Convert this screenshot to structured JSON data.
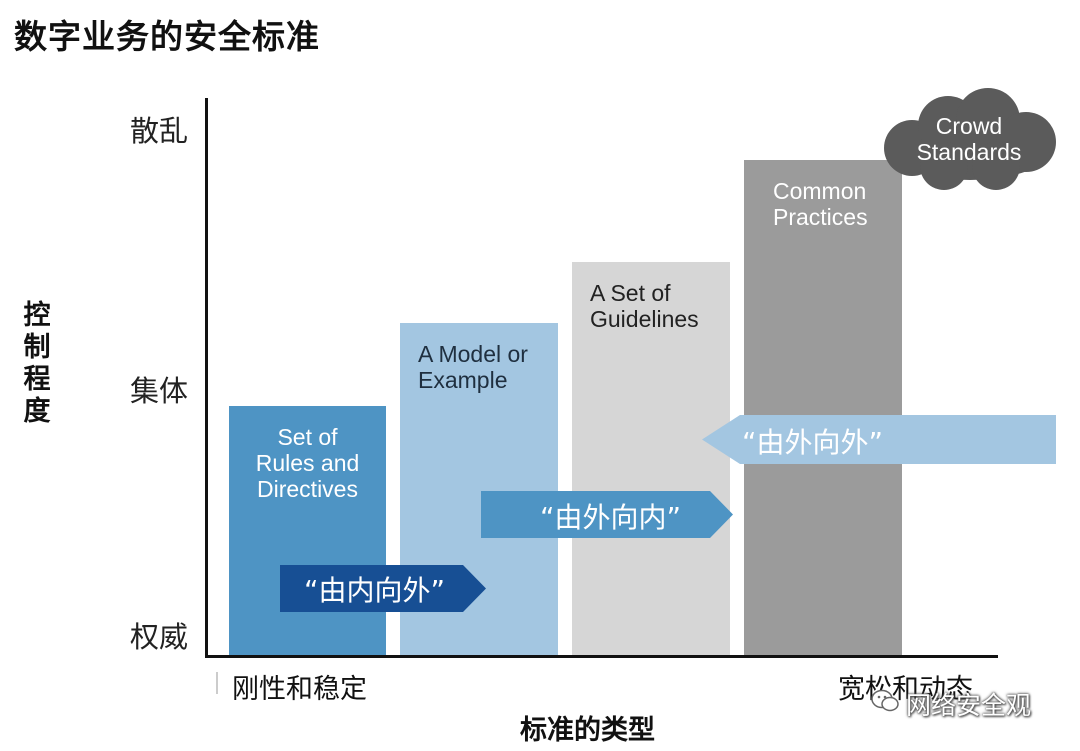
{
  "title": "数字业务的安全标准",
  "y_axis": {
    "title": "控制程度",
    "levels": {
      "top": "散乱",
      "middle": "集体",
      "bottom": "权威"
    }
  },
  "x_axis": {
    "title": "标准的类型",
    "left_label": "刚性和稳定",
    "right_label": "宽松和动态"
  },
  "bars": [
    {
      "label": "Set of\nRules and\nDirectives",
      "color": "#4e94c4",
      "text_color": "#ffffff"
    },
    {
      "label": "A Model or\nExample",
      "color": "#a3c6e1",
      "text_color": "#1f2f3f"
    },
    {
      "label": "A Set of\nGuidelines",
      "color": "#d6d6d6",
      "text_color": "#222222"
    },
    {
      "label": "Common\nPractices",
      "color": "#9b9b9b",
      "text_color": "#ffffff"
    }
  ],
  "cloud": {
    "label": "Crowd\nStandards",
    "color": "#5b5b5b"
  },
  "arrows": [
    {
      "text": "“由内向外”",
      "color": "#174f94"
    },
    {
      "text": "“由外向内”",
      "color": "#4e94c4"
    },
    {
      "text": "“由外向外”",
      "color": "#a3c6e1"
    }
  ],
  "watermark": "网络安全观"
}
